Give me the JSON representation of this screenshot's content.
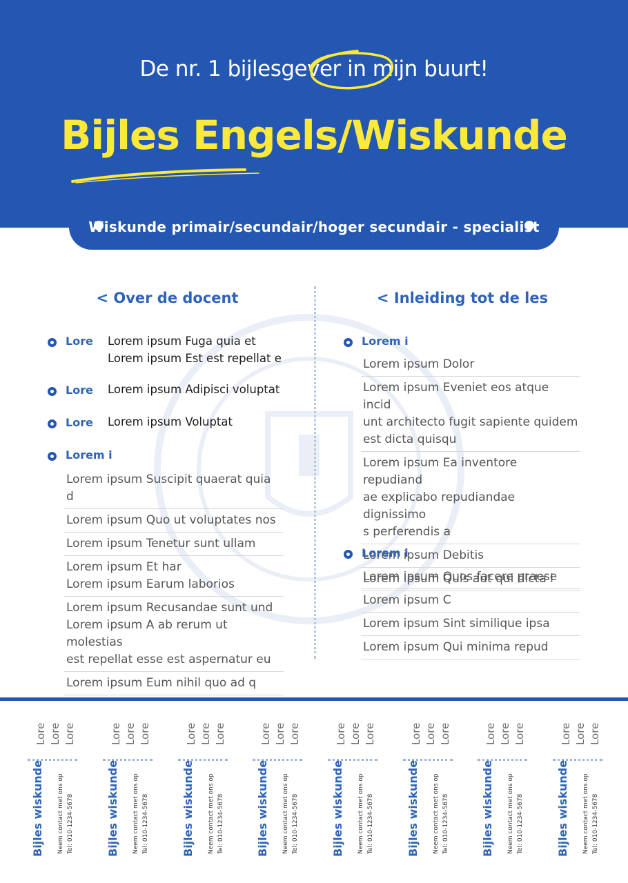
{
  "header": {
    "tagline": "De nr. 1 bijlesgever in mijn buurt!",
    "title": "Bijles Engels/Wiskunde"
  },
  "pill": {
    "text": "Wiskunde primair/secundair/hoger secundair - specialist"
  },
  "colors": {
    "primary": "#2457b1",
    "accent": "#fde93a"
  },
  "left": {
    "title": "< Over de docent",
    "items": [
      {
        "label": "Lore",
        "value": "Lorem ipsum Fuga quia et\nLorem ipsum Est est repellat e"
      },
      {
        "label": "Lore",
        "value": "Lorem ipsum Adipisci voluptat"
      },
      {
        "label": "Lore",
        "value": "Lorem ipsum Voluptat"
      }
    ],
    "section_label": "Lorem i",
    "rows": [
      "Lorem ipsum Suscipit quaerat quia d",
      "Lorem ipsum Quo ut voluptates nos",
      "Lorem ipsum Tenetur sunt ullam",
      "Lorem ipsum Et har\nLorem ipsum Earum laborios",
      "Lorem ipsum Recusandae sunt und\nLorem ipsum A ab rerum ut molestias\nest repellat esse est aspernatur eu",
      "Lorem ipsum Eum nihil quo ad q"
    ]
  },
  "right": {
    "title": "< Inleiding tot de les",
    "section1_label": "Lorem i",
    "rows1": [
      "Lorem ipsum Dolor",
      "Lorem ipsum Eveniet eos atque incid\nunt architecto fugit sapiente quidem\nest dicta quisqu",
      "Lorem ipsum Ea inventore repudiand\nae explicabo repudiandae dignissimo\ns perferendis a",
      "Lorem ipsum Debitis",
      "Lorem ipsum Quis aut qui dicta i"
    ],
    "section2_label": "Lorem i",
    "rows2": [
      "Lorem ipsum Quos facere praese",
      "Lorem ipsum C",
      "Lorem ipsum Sint similique ipsa",
      "Lorem ipsum Qui minima repud"
    ]
  },
  "tab": {
    "lores": [
      "Lore",
      "Lore",
      "Lore"
    ],
    "brand": "Bijles wiskunde",
    "contact": "Neem contact met ons op",
    "phone": "Tel: 010-1234-5678"
  },
  "watermark": {
    "icon": "school-seal-icon"
  }
}
